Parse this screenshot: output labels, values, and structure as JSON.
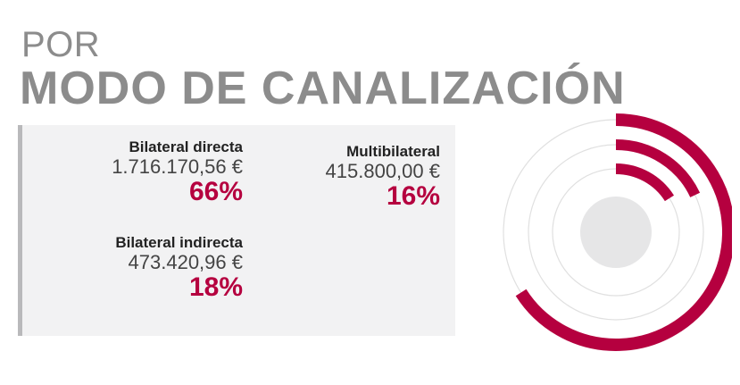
{
  "title": {
    "line1": "POR",
    "line2": "MODO DE CANALIZACIÓN"
  },
  "colors": {
    "accent": "#b5003f",
    "title": "#8c8c8c",
    "panel": "#f2f2f3",
    "track": "#e0e0e0",
    "center": "#e6e6e7"
  },
  "entries": [
    {
      "label": "Bilateral directa",
      "amount": "1.716.170,56 €",
      "percent": "66%"
    },
    {
      "label": "Multibilateral",
      "amount": "415.800,00 €",
      "percent": "16%"
    },
    {
      "label": "Bilateral indirecta",
      "amount": "473.420,96 €",
      "percent": "18%"
    }
  ],
  "chart_data": {
    "type": "radial-bar",
    "categories": [
      "Bilateral directa",
      "Multibilateral",
      "Bilateral indirecta"
    ],
    "values": [
      66,
      16,
      18
    ],
    "amounts": [
      1716170.56,
      415800.0,
      473420.96
    ],
    "unit": "%"
  }
}
